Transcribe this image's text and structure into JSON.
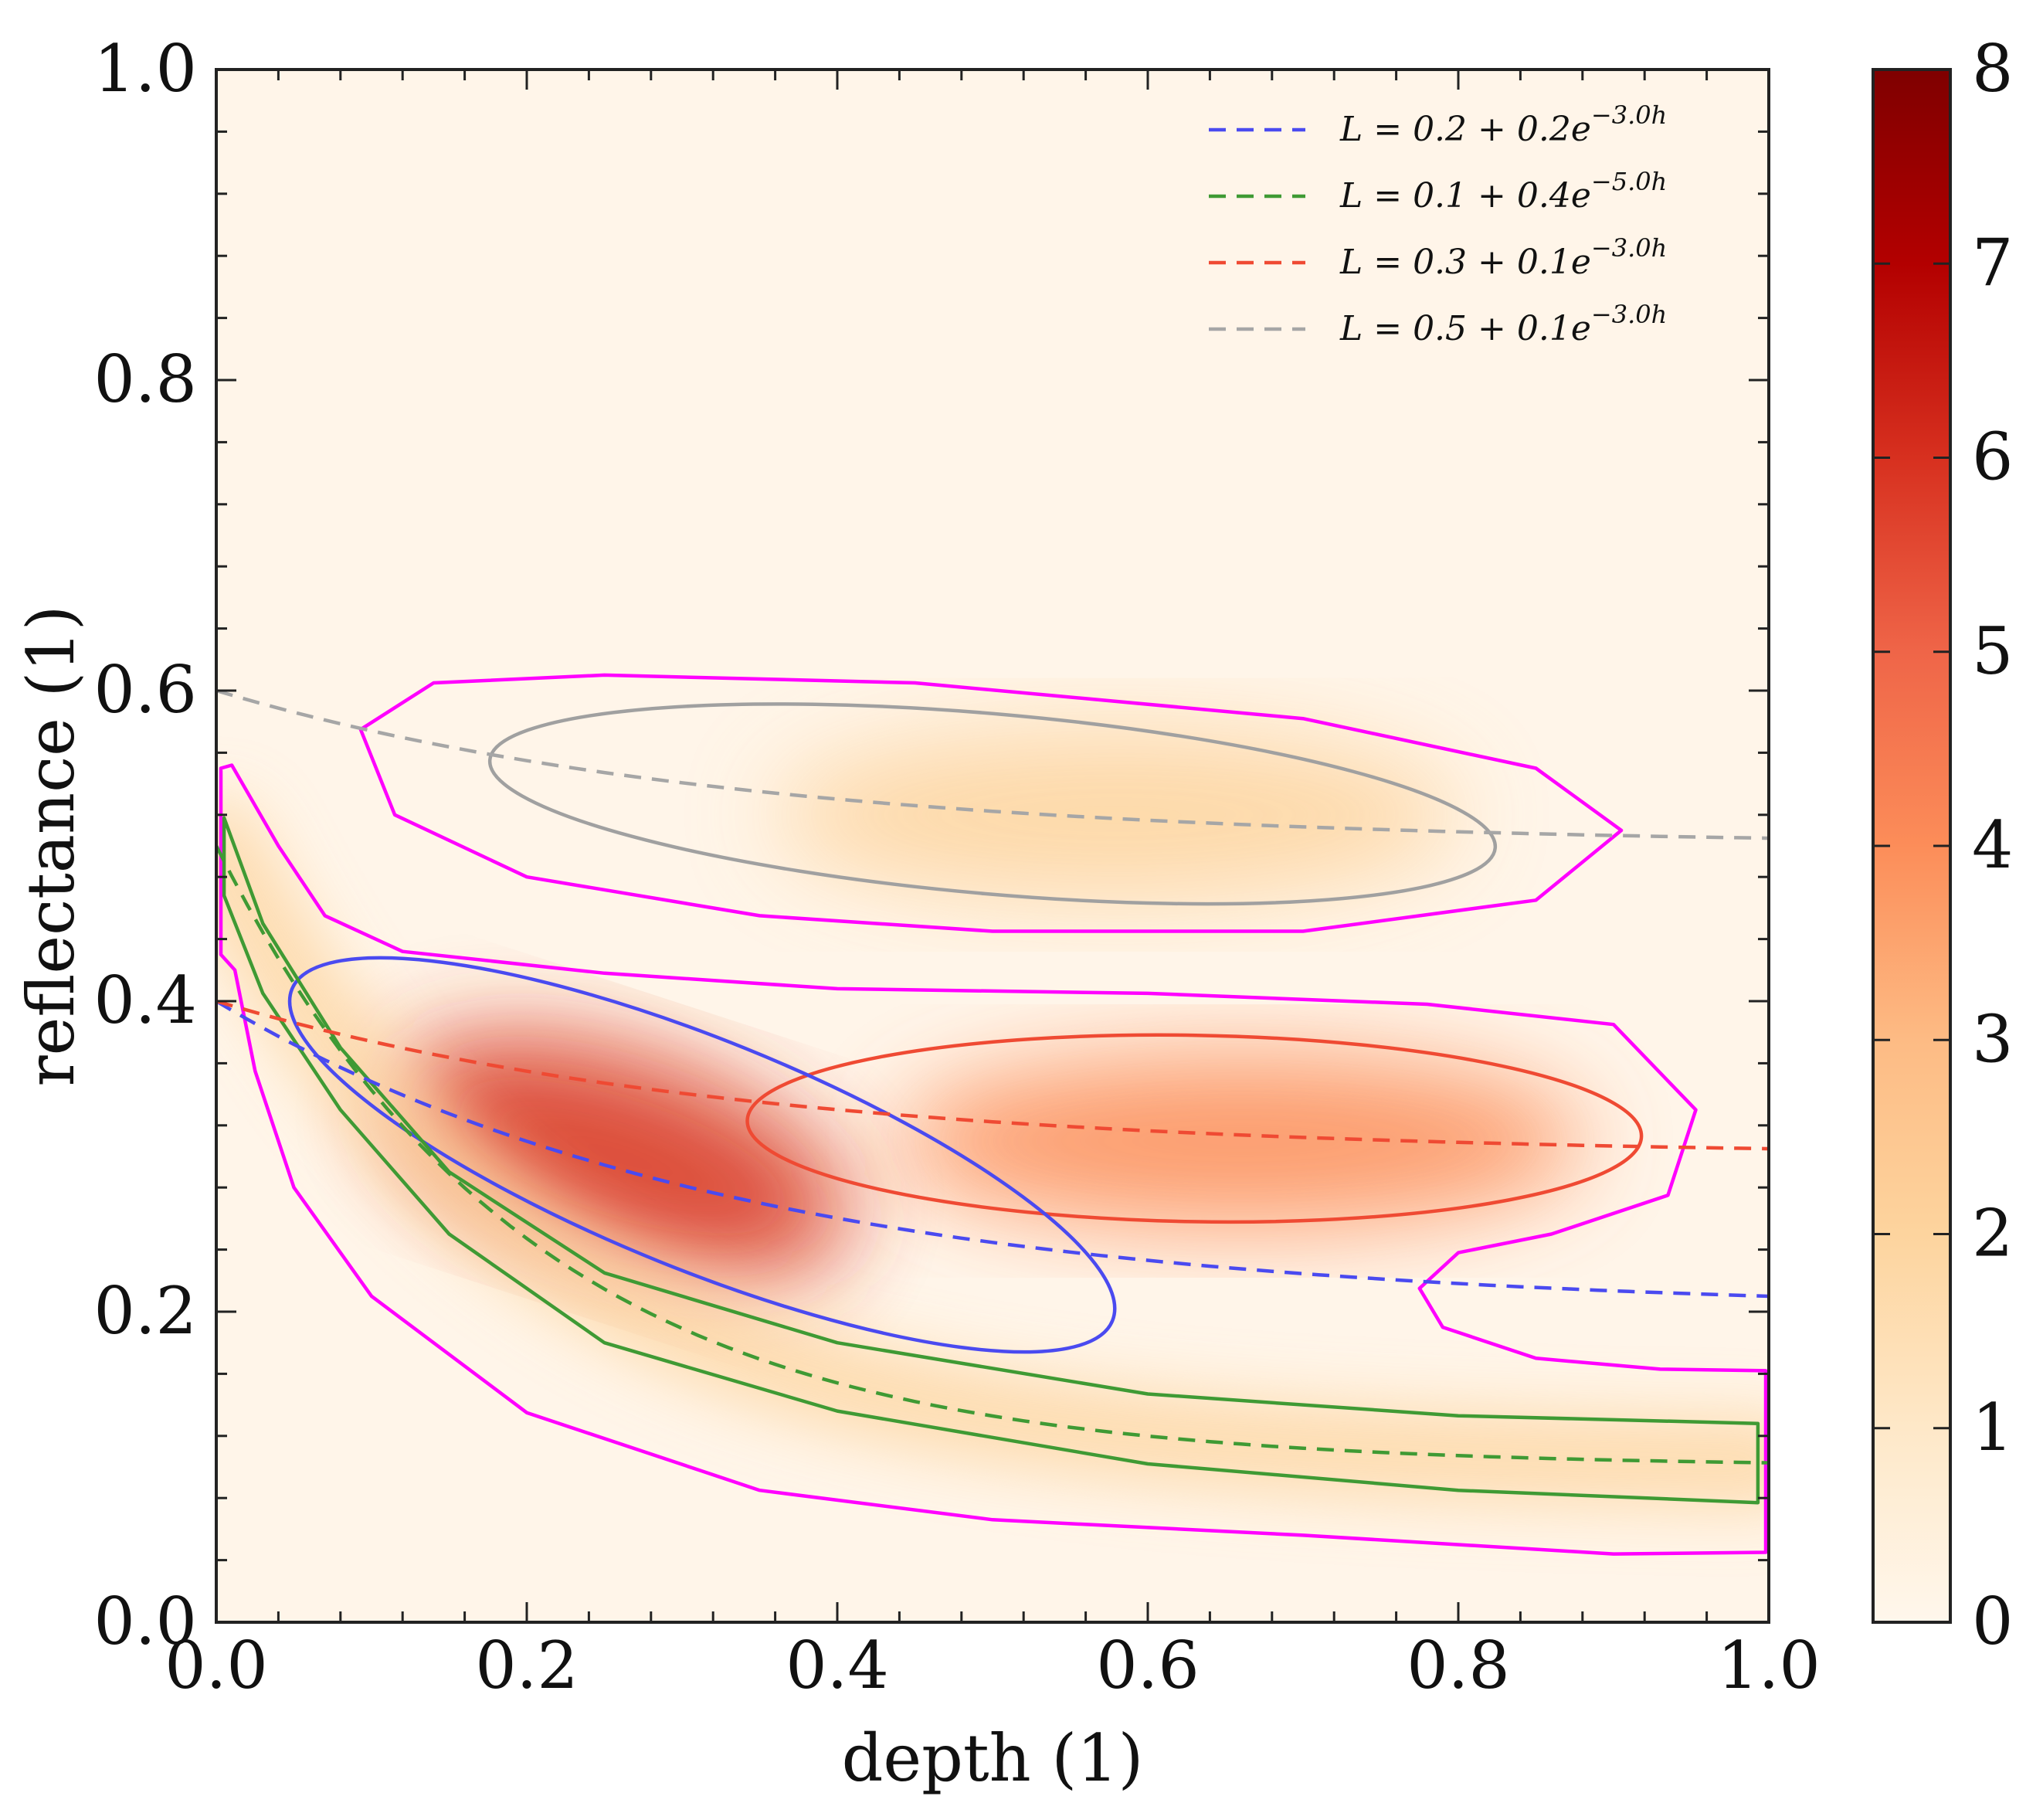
{
  "chart_data": {
    "type": "heatmap",
    "title": "",
    "xlabel": "depth (1)",
    "ylabel": "reflectance (1)",
    "xlim": [
      0.0,
      1.0
    ],
    "ylim": [
      0.0,
      1.0
    ],
    "xticks": [
      "0.0",
      "0.2",
      "0.4",
      "0.6",
      "0.8",
      "1.0"
    ],
    "yticks": [
      "0.0",
      "0.2",
      "0.4",
      "0.6",
      "0.8",
      "1.0"
    ],
    "xtick_values": [
      0.0,
      0.2,
      0.4,
      0.6,
      0.8,
      1.0
    ],
    "ytick_values": [
      0.0,
      0.2,
      0.4,
      0.6,
      0.8,
      1.0
    ],
    "grid": false,
    "legend_position": "top-right",
    "colorbar": {
      "range": [
        0,
        8
      ],
      "ticks": [
        "0",
        "1",
        "2",
        "3",
        "4",
        "5",
        "6",
        "7",
        "8"
      ],
      "tick_values": [
        0,
        1,
        2,
        3,
        4,
        5,
        6,
        7,
        8
      ],
      "colormap": "OrRd"
    },
    "density_blobs": [
      {
        "name": "gray component",
        "cx": 0.58,
        "cy": 0.52,
        "sx": 0.26,
        "sy": 0.05,
        "peak": 2.4
      },
      {
        "name": "red component",
        "cx": 0.66,
        "cy": 0.31,
        "sx": 0.26,
        "sy": 0.05,
        "peak": 4.2
      },
      {
        "name": "blue component",
        "cx": 0.26,
        "cy": 0.3,
        "sx": 0.18,
        "sy": 0.06,
        "peak": 6.0
      },
      {
        "name": "green band",
        "along": "green curve",
        "peak": 2.0
      }
    ],
    "series": [
      {
        "name": "L = 0.2 + 0.2e^{-3.0h}",
        "a": 0.2,
        "b": 0.2,
        "k": 3.0,
        "color": "#4a4af0",
        "style": "dashed"
      },
      {
        "name": "L = 0.1 + 0.4e^{-5.0h}",
        "a": 0.1,
        "b": 0.4,
        "k": 5.0,
        "color": "#3f9a34",
        "style": "dashed"
      },
      {
        "name": "L = 0.3 + 0.1e^{-3.0h}",
        "a": 0.3,
        "b": 0.1,
        "k": 3.0,
        "color": "#ef4a33",
        "style": "dashed"
      },
      {
        "name": "L = 0.5 + 0.1e^{-3.0h}",
        "a": 0.5,
        "b": 0.1,
        "k": 3.0,
        "color": "#a6a6a6",
        "style": "dashed"
      }
    ],
    "legend": [
      {
        "lhs": "L",
        "eq": " = ",
        "a": "0.2",
        "plus": " + ",
        "b": "0.2e",
        "exp": "−3.0h",
        "color": "#4a4af0"
      },
      {
        "lhs": "L",
        "eq": " = ",
        "a": "0.1",
        "plus": " + ",
        "b": "0.4e",
        "exp": "−5.0h",
        "color": "#3f9a34"
      },
      {
        "lhs": "L",
        "eq": " = ",
        "a": "0.3",
        "plus": " + ",
        "b": "0.1e",
        "exp": "−3.0h",
        "color": "#ef4a33"
      },
      {
        "lhs": "L",
        "eq": " = ",
        "a": "0.5",
        "plus": " + ",
        "b": "0.1e",
        "exp": "−3.0h",
        "color": "#a6a6a6"
      }
    ],
    "contours": [
      {
        "name": "gray ellipse",
        "color": "#a0a0a0",
        "cx": 0.5,
        "cy": 0.527,
        "rx": 0.325,
        "ry": 0.058,
        "angle_deg": -5
      },
      {
        "name": "red ellipse",
        "color": "#ef4a33",
        "cx": 0.63,
        "cy": 0.318,
        "rx": 0.288,
        "ry": 0.06,
        "angle_deg": -1
      },
      {
        "name": "blue ellipse",
        "color": "#4a4af0",
        "cx": 0.313,
        "cy": 0.301,
        "rx": 0.285,
        "ry": 0.074,
        "angle_deg": -22
      },
      {
        "name": "magenta upper contour",
        "color": "#ff00ff",
        "points": [
          [
            0.093,
            0.575
          ],
          [
            0.14,
            0.605
          ],
          [
            0.25,
            0.61
          ],
          [
            0.45,
            0.605
          ],
          [
            0.7,
            0.582
          ],
          [
            0.85,
            0.55
          ],
          [
            0.905,
            0.51
          ],
          [
            0.85,
            0.465
          ],
          [
            0.7,
            0.445
          ],
          [
            0.5,
            0.445
          ],
          [
            0.35,
            0.455
          ],
          [
            0.2,
            0.48
          ],
          [
            0.115,
            0.52
          ],
          [
            0.093,
            0.575
          ]
        ]
      },
      {
        "name": "magenta lower contour",
        "color": "#ff00ff",
        "points": [
          [
            0.003,
            0.55
          ],
          [
            0.01,
            0.552
          ],
          [
            0.04,
            0.5
          ],
          [
            0.07,
            0.455
          ],
          [
            0.12,
            0.432
          ],
          [
            0.25,
            0.418
          ],
          [
            0.4,
            0.408
          ],
          [
            0.6,
            0.405
          ],
          [
            0.78,
            0.398
          ],
          [
            0.9,
            0.385
          ],
          [
            0.953,
            0.33
          ],
          [
            0.935,
            0.275
          ],
          [
            0.86,
            0.25
          ],
          [
            0.8,
            0.238
          ],
          [
            0.775,
            0.215
          ],
          [
            0.79,
            0.19
          ],
          [
            0.85,
            0.17
          ],
          [
            0.93,
            0.163
          ],
          [
            0.998,
            0.162
          ],
          [
            0.998,
            0.045
          ],
          [
            0.9,
            0.044
          ],
          [
            0.7,
            0.056
          ],
          [
            0.5,
            0.066
          ],
          [
            0.35,
            0.085
          ],
          [
            0.2,
            0.135
          ],
          [
            0.1,
            0.21
          ],
          [
            0.05,
            0.28
          ],
          [
            0.025,
            0.355
          ],
          [
            0.012,
            0.42
          ],
          [
            0.003,
            0.43
          ]
        ]
      },
      {
        "name": "green band contour",
        "color": "#3f9a34",
        "points": [
          [
            0.005,
            0.518
          ],
          [
            0.03,
            0.45
          ],
          [
            0.08,
            0.37
          ],
          [
            0.15,
            0.29
          ],
          [
            0.25,
            0.225
          ],
          [
            0.4,
            0.18
          ],
          [
            0.6,
            0.147
          ],
          [
            0.8,
            0.133
          ],
          [
            0.993,
            0.128
          ],
          [
            0.993,
            0.077
          ],
          [
            0.8,
            0.085
          ],
          [
            0.6,
            0.102
          ],
          [
            0.4,
            0.136
          ],
          [
            0.25,
            0.18
          ],
          [
            0.15,
            0.25
          ],
          [
            0.08,
            0.33
          ],
          [
            0.03,
            0.405
          ],
          [
            0.005,
            0.468
          ]
        ]
      }
    ]
  }
}
